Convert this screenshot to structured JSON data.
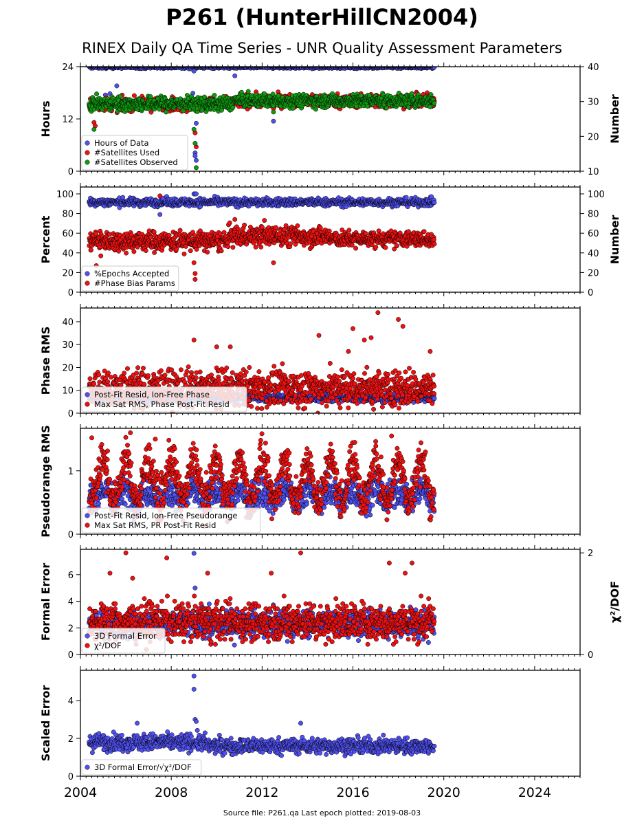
{
  "title": "P261 (HunterHillCN2004)",
  "subtitle": "RINEX Daily QA Time Series - UNR Quality Assessment Parameters",
  "footer": "Source file: P261.qa Last epoch plotted: 2019-08-03",
  "colors": {
    "blue": "#5050f0",
    "red": "#ee1111",
    "green": "#119911",
    "axis": "#000000"
  },
  "x_axis": {
    "min": 2004,
    "max": 2026,
    "tick_labels": [
      "2004",
      "2008",
      "2012",
      "2016",
      "2020",
      "2024"
    ],
    "tick_values": [
      2004,
      2008,
      2012,
      2016,
      2020,
      2024
    ],
    "data_start": 2004.38,
    "data_end": 2019.59
  },
  "chart_data": [
    {
      "type": "scatter",
      "ylabel": "Hours",
      "ylim": [
        0,
        24
      ],
      "yticks": [
        "0",
        "12",
        "24"
      ],
      "right_axis": {
        "label": "Number",
        "ylim": [
          10,
          40
        ],
        "ticks": [
          "10",
          "20",
          "30",
          "40"
        ]
      },
      "legend": {
        "placement": "lower-left",
        "entries": [
          {
            "label": "Hours of Data",
            "color": "blue"
          },
          {
            "label": "#Satellites Used",
            "color": "red"
          },
          {
            "label": "#Satellites Observed",
            "color": "green"
          }
        ]
      },
      "series": [
        {
          "name": "Hours of Data",
          "color": "blue",
          "axis": "left",
          "segments": [
            {
              "x": [
                2004.38,
                2019.59
              ],
              "center": 23.9,
              "spread": 0.15
            }
          ],
          "outliers": [
            [
              2005.1,
              17.5
            ],
            [
              2005.3,
              17.8
            ],
            [
              2005.6,
              19.6
            ],
            [
              2008.95,
              17.9
            ],
            [
              2009.0,
              23.0
            ],
            [
              2009.05,
              4.2
            ],
            [
              2009.05,
              3.5
            ],
            [
              2009.1,
              2.5
            ],
            [
              2009.1,
              11.0
            ],
            [
              2010.8,
              21.9
            ],
            [
              2012.5,
              11.5
            ]
          ]
        },
        {
          "name": "#Satellites Used",
          "color": "red",
          "axis": "right",
          "segments": [
            {
              "x": [
                2004.38,
                2010.7
              ],
              "center": 29.2,
              "spread": 0.9
            },
            {
              "x": [
                2010.7,
                2019.59
              ],
              "center": 30.2,
              "spread": 0.9
            }
          ],
          "outliers": [
            [
              2004.6,
              24.0
            ],
            [
              2004.65,
              23.0
            ],
            [
              2009.05,
              21.0
            ],
            [
              2009.1,
              17.0
            ],
            [
              2012.5,
              28.0
            ]
          ]
        },
        {
          "name": "#Satellites Observed",
          "color": "green",
          "axis": "right",
          "segments": [
            {
              "x": [
                2004.38,
                2010.7
              ],
              "center": 29.3,
              "spread": 1.0
            },
            {
              "x": [
                2010.7,
                2019.59
              ],
              "center": 30.2,
              "spread": 0.9
            }
          ],
          "outliers": [
            [
              2004.6,
              22.0
            ],
            [
              2009.0,
              22.0
            ],
            [
              2009.05,
              18.0
            ],
            [
              2009.1,
              11.0
            ],
            [
              2012.5,
              27.0
            ]
          ]
        }
      ]
    },
    {
      "type": "scatter",
      "ylabel": "Percent",
      "ylim": [
        0,
        107
      ],
      "yticks": [
        "0",
        "20",
        "40",
        "60",
        "80",
        "100"
      ],
      "right_axis": {
        "label": "Number",
        "ylim": [
          0,
          107
        ],
        "ticks": [
          "0",
          "20",
          "40",
          "60",
          "80",
          "100"
        ]
      },
      "legend": {
        "placement": "lower-left",
        "entries": [
          {
            "label": "%Epochs Accepted",
            "color": "blue"
          },
          {
            "label": "#Phase Bias Params",
            "color": "red"
          }
        ]
      },
      "series": [
        {
          "name": "%Epochs Accepted",
          "color": "blue",
          "axis": "left",
          "segments": [
            {
              "x": [
                2004.38,
                2019.59
              ],
              "center": 91.5,
              "spread": 2.0
            }
          ],
          "outliers": [
            [
              2007.5,
              79.0
            ],
            [
              2009.0,
              100.0
            ],
            [
              2009.05,
              100.0
            ],
            [
              2009.1,
              100.0
            ]
          ]
        },
        {
          "name": "#Phase Bias Params",
          "color": "red",
          "axis": "right",
          "segments": [
            {
              "x": [
                2004.38,
                2010.5
              ],
              "center": 52.0,
              "spread": 5.0
            },
            {
              "x": [
                2010.5,
                2015.0
              ],
              "center": 57.0,
              "spread": 5.0
            },
            {
              "x": [
                2015.0,
                2019.59
              ],
              "center": 54.0,
              "spread": 4.0
            }
          ],
          "outliers": [
            [
              2004.7,
              27.0
            ],
            [
              2004.9,
              37.0
            ],
            [
              2007.5,
              98.0
            ],
            [
              2009.0,
              30.0
            ],
            [
              2009.05,
              19.0
            ],
            [
              2009.05,
              13.0
            ],
            [
              2012.5,
              30.0
            ],
            [
              2010.8,
              74.0
            ],
            [
              2012.1,
              73.0
            ]
          ]
        }
      ]
    },
    {
      "type": "scatter",
      "ylabel": "Phase RMS",
      "ylim": [
        0,
        46
      ],
      "yticks": [
        "0",
        "10",
        "20",
        "30",
        "40"
      ],
      "legend": {
        "placement": "lower-left",
        "entries": [
          {
            "label": "Post-Fit Resid, Ion-Free Phase",
            "color": "blue"
          },
          {
            "label": "Max Sat RMS, Phase Post-Fit Resid",
            "color": "red"
          }
        ]
      },
      "series": [
        {
          "name": "Post-Fit Resid, Ion-Free Phase",
          "color": "blue",
          "axis": "left",
          "segments": [
            {
              "x": [
                2004.38,
                2019.59
              ],
              "center": 6.8,
              "spread": 0.9
            }
          ],
          "outliers": []
        },
        {
          "name": "Max Sat RMS, Phase Post-Fit Resid",
          "color": "red",
          "axis": "left",
          "segments": [
            {
              "x": [
                2004.38,
                2019.59
              ],
              "center": 11.0,
              "spread": 4.0
            }
          ],
          "outliers": [
            [
              2009.0,
              32.0
            ],
            [
              2010.0,
              29.0
            ],
            [
              2010.6,
              29.0
            ],
            [
              2014.5,
              34.0
            ],
            [
              2016.0,
              37.0
            ],
            [
              2016.5,
              32.0
            ],
            [
              2016.8,
              33.0
            ],
            [
              2017.1,
              44.0
            ],
            [
              2018.0,
              41.0
            ],
            [
              2018.2,
              38.0
            ],
            [
              2019.4,
              27.0
            ],
            [
              2015.8,
              27.0
            ]
          ]
        }
      ]
    },
    {
      "type": "scatter",
      "ylabel": "Pseudorange RMS",
      "ylim": [
        0,
        1.67
      ],
      "yticks": [
        "0",
        "1"
      ],
      "legend": {
        "placement": "lower-left",
        "entries": [
          {
            "label": "Post-Fit Resid, Ion-Free Pseudorange",
            "color": "blue"
          },
          {
            "label": "Max Sat RMS, PR Post-Fit Resid",
            "color": "red"
          }
        ]
      },
      "series": [
        {
          "name": "Post-Fit Resid, Ion-Free Pseudorange",
          "color": "blue",
          "axis": "left",
          "segments": [
            {
              "x": [
                2004.38,
                2019.59
              ],
              "center": 0.62,
              "spread": 0.12,
              "seasonal": 0.08
            }
          ],
          "outliers": []
        },
        {
          "name": "Max Sat RMS, PR Post-Fit Resid",
          "color": "red",
          "axis": "left",
          "segments": [
            {
              "x": [
                2004.38,
                2019.59
              ],
              "center": 0.85,
              "spread": 0.15,
              "seasonal": 0.32
            }
          ],
          "outliers": [
            [
              2004.5,
              1.52
            ],
            [
              2006.2,
              1.6
            ],
            [
              2007.3,
              1.5
            ],
            [
              2017.7,
              1.55
            ]
          ]
        }
      ]
    },
    {
      "type": "scatter",
      "ylabel": "Formal Error",
      "ylim": [
        0,
        7.9
      ],
      "yticks": [
        "0",
        "2",
        "4",
        "6"
      ],
      "right_axis": {
        "label": "χ²/DOF",
        "ylim": [
          0,
          2.07
        ],
        "ticks": [
          "0",
          "2"
        ]
      },
      "legend": {
        "placement": "lower-left",
        "entries": [
          {
            "label": "3D Formal Error",
            "color": "blue"
          },
          {
            "label": "χ²/DOF",
            "color": "red"
          }
        ]
      },
      "series": [
        {
          "name": "3D Formal Error",
          "color": "blue",
          "axis": "left",
          "segments": [
            {
              "x": [
                2004.38,
                2019.59
              ],
              "center": 2.3,
              "spread": 0.5
            }
          ],
          "outliers": [
            [
              2009.0,
              7.6
            ],
            [
              2009.05,
              5.0
            ]
          ]
        },
        {
          "name": "χ²/DOF",
          "color": "red",
          "axis": "right",
          "segments": [
            {
              "x": [
                2004.38,
                2019.59
              ],
              "center": 0.65,
              "spread": 0.18,
              "discrete": 0.05
            }
          ],
          "outliers": [
            [
              2006.0,
              2.0
            ],
            [
              2007.8,
              1.9
            ],
            [
              2013.7,
              2.0
            ],
            [
              2005.3,
              1.6
            ],
            [
              2006.3,
              1.5
            ],
            [
              2009.6,
              1.6
            ],
            [
              2012.4,
              1.6
            ],
            [
              2017.6,
              1.8
            ],
            [
              2018.6,
              1.8
            ],
            [
              2018.3,
              1.6
            ]
          ]
        }
      ]
    },
    {
      "type": "scatter",
      "ylabel": "Scaled Error",
      "ylim": [
        0,
        5.6
      ],
      "yticks": [
        "0",
        "2",
        "4"
      ],
      "legend": {
        "placement": "lower-left",
        "entries": [
          {
            "label": "3D Formal Error/√χ²/DOF",
            "color": "blue"
          }
        ]
      },
      "series": [
        {
          "name": "3D Formal Error/√χ²/DOF",
          "color": "blue",
          "axis": "left",
          "segments": [
            {
              "x": [
                2004.38,
                2009.5
              ],
              "center": 1.8,
              "spread": 0.22
            },
            {
              "x": [
                2009.5,
                2019.59
              ],
              "center": 1.6,
              "spread": 0.2
            }
          ],
          "outliers": [
            [
              2009.0,
              5.3
            ],
            [
              2009.0,
              4.6
            ],
            [
              2009.05,
              3.0
            ],
            [
              2009.1,
              2.9
            ],
            [
              2013.7,
              2.8
            ],
            [
              2006.5,
              2.8
            ]
          ]
        }
      ]
    }
  ]
}
